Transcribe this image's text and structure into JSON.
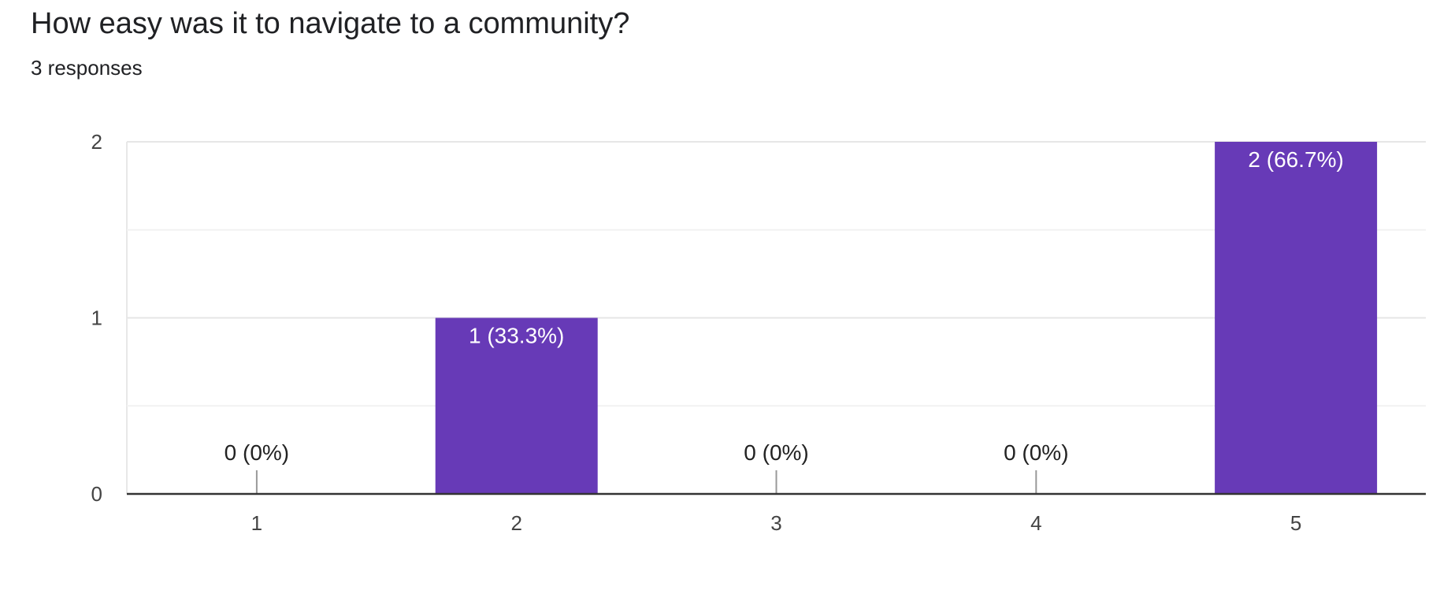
{
  "question": {
    "title": "How easy was it to navigate to a community?",
    "responses_label": "3 responses"
  },
  "chart_data": {
    "type": "bar",
    "categories": [
      "1",
      "2",
      "3",
      "4",
      "5"
    ],
    "values": [
      0,
      1,
      0,
      0,
      2
    ],
    "data_labels": [
      "0 (0%)",
      "1 (33.3%)",
      "0 (0%)",
      "0 (0%)",
      "2 (66.7%)"
    ],
    "title": "How easy was it to navigate to a community?",
    "subtitle": "3 responses",
    "xlabel": "",
    "ylabel": "",
    "ylim": [
      0,
      2
    ],
    "yticks": [
      "0",
      "1",
      "2"
    ],
    "grid": true,
    "legend": "none",
    "bar_color": "#673ab7"
  }
}
